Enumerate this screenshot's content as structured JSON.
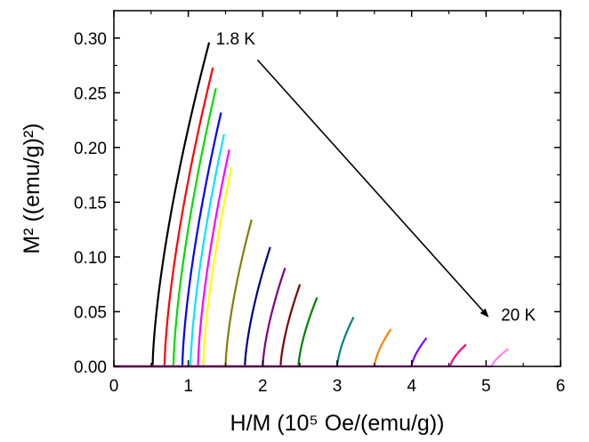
{
  "chart_data": {
    "type": "line",
    "xlabel": "H/M (10⁵ Oe/(emu/g))",
    "ylabel": "M² ((emu/g)²)",
    "xlim": [
      0,
      6
    ],
    "ylim": [
      0,
      0.325
    ],
    "x_ticks": [
      "0",
      "1",
      "2",
      "3",
      "4",
      "5",
      "6"
    ],
    "y_ticks": [
      "0.00",
      "0.05",
      "0.10",
      "0.15",
      "0.20",
      "0.25",
      "0.30"
    ],
    "grid": false,
    "legend": "none",
    "annotations": {
      "start_label": "1.8 K",
      "end_label": "20 K"
    },
    "arrow": {
      "from": [
        1.93,
        0.28
      ],
      "to": [
        5.02,
        0.046
      ]
    },
    "series": [
      {
        "color": "#000000",
        "x0": 0.52,
        "x1": 1.28,
        "ytop": 0.296
      },
      {
        "color": "#ff0000",
        "x0": 0.68,
        "x1": 1.33,
        "ytop": 0.273
      },
      {
        "color": "#00dd00",
        "x0": 0.8,
        "x1": 1.37,
        "ytop": 0.254
      },
      {
        "color": "#0000ff",
        "x0": 0.92,
        "x1": 1.44,
        "ytop": 0.232
      },
      {
        "color": "#00e5ff",
        "x0": 1.03,
        "x1": 1.48,
        "ytop": 0.212
      },
      {
        "color": "#ff00ff",
        "x0": 1.13,
        "x1": 1.55,
        "ytop": 0.198
      },
      {
        "color": "#ffff00",
        "x0": 1.2,
        "x1": 1.58,
        "ytop": 0.182
      },
      {
        "color": "#808000",
        "x0": 1.5,
        "x1": 1.85,
        "ytop": 0.134
      },
      {
        "color": "#000080",
        "x0": 1.76,
        "x1": 2.1,
        "ytop": 0.109
      },
      {
        "color": "#800080",
        "x0": 2.0,
        "x1": 2.3,
        "ytop": 0.09
      },
      {
        "color": "#800000",
        "x0": 2.24,
        "x1": 2.5,
        "ytop": 0.075
      },
      {
        "color": "#008000",
        "x0": 2.48,
        "x1": 2.73,
        "ytop": 0.063
      },
      {
        "color": "#008080",
        "x0": 3.0,
        "x1": 3.22,
        "ytop": 0.045
      },
      {
        "color": "#ff8000",
        "x0": 3.5,
        "x1": 3.72,
        "ytop": 0.034
      },
      {
        "color": "#8000ff",
        "x0": 4.0,
        "x1": 4.2,
        "ytop": 0.026
      },
      {
        "color": "#ff0080",
        "x0": 4.52,
        "x1": 4.73,
        "ytop": 0.02
      },
      {
        "color": "#ff80ff",
        "x0": 5.08,
        "x1": 5.3,
        "ytop": 0.016
      }
    ]
  }
}
